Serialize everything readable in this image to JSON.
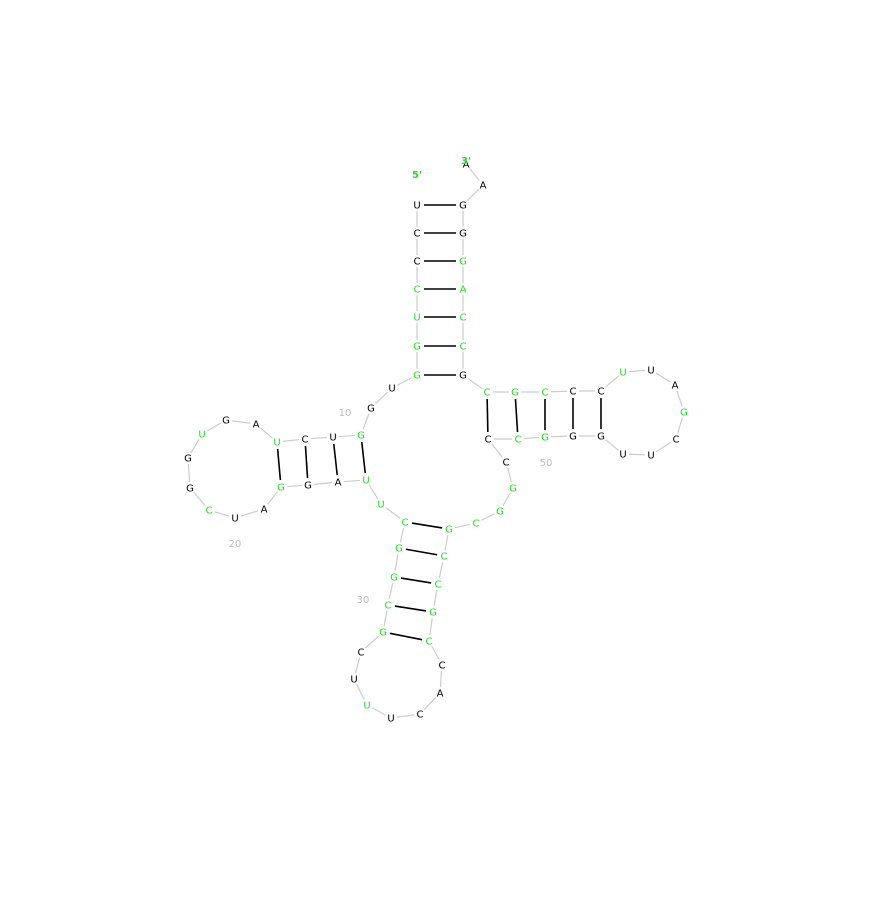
{
  "colors": {
    "black": "#000000",
    "green": "#22dd22",
    "backbone": "#cccccc",
    "pair": "#000000",
    "index": "#bbbbbb"
  },
  "labels": {
    "five_prime": "5'",
    "three_prime": "3'"
  },
  "index_labels": [
    "10",
    "20",
    "30",
    "50"
  ],
  "nucleotides": [
    {
      "base": "U",
      "color": "black"
    },
    {
      "base": "C",
      "color": "black"
    },
    {
      "base": "C",
      "color": "black"
    },
    {
      "base": "C",
      "color": "green"
    },
    {
      "base": "U",
      "color": "green"
    },
    {
      "base": "G",
      "color": "green"
    },
    {
      "base": "G",
      "color": "green"
    },
    {
      "base": "U",
      "color": "black"
    },
    {
      "base": "G",
      "color": "black"
    },
    {
      "base": "G",
      "color": "green"
    },
    {
      "base": "U",
      "color": "black"
    },
    {
      "base": "C",
      "color": "black"
    },
    {
      "base": "U",
      "color": "green"
    },
    {
      "base": "A",
      "color": "black"
    },
    {
      "base": "G",
      "color": "black"
    },
    {
      "base": "U",
      "color": "green"
    },
    {
      "base": "G",
      "color": "black"
    },
    {
      "base": "G",
      "color": "black"
    },
    {
      "base": "C",
      "color": "green"
    },
    {
      "base": "U",
      "color": "black"
    },
    {
      "base": "A",
      "color": "black"
    },
    {
      "base": "G",
      "color": "green"
    },
    {
      "base": "G",
      "color": "black"
    },
    {
      "base": "A",
      "color": "black"
    },
    {
      "base": "U",
      "color": "green"
    },
    {
      "base": "U",
      "color": "green"
    },
    {
      "base": "C",
      "color": "green"
    },
    {
      "base": "G",
      "color": "green"
    },
    {
      "base": "G",
      "color": "green"
    },
    {
      "base": "C",
      "color": "green"
    },
    {
      "base": "G",
      "color": "green"
    },
    {
      "base": "C",
      "color": "black"
    },
    {
      "base": "U",
      "color": "black"
    },
    {
      "base": "U",
      "color": "green"
    },
    {
      "base": "U",
      "color": "black"
    },
    {
      "base": "C",
      "color": "black"
    },
    {
      "base": "A",
      "color": "black"
    },
    {
      "base": "C",
      "color": "black"
    },
    {
      "base": "C",
      "color": "green"
    },
    {
      "base": "G",
      "color": "green"
    },
    {
      "base": "C",
      "color": "green"
    },
    {
      "base": "C",
      "color": "green"
    },
    {
      "base": "G",
      "color": "green"
    },
    {
      "base": "C",
      "color": "green"
    },
    {
      "base": "G",
      "color": "green"
    },
    {
      "base": "G",
      "color": "green"
    },
    {
      "base": "C",
      "color": "black"
    },
    {
      "base": "C",
      "color": "black"
    },
    {
      "base": "C",
      "color": "green"
    },
    {
      "base": "G",
      "color": "green"
    },
    {
      "base": "G",
      "color": "black"
    },
    {
      "base": "G",
      "color": "black"
    },
    {
      "base": "U",
      "color": "black"
    },
    {
      "base": "U",
      "color": "black"
    },
    {
      "base": "C",
      "color": "black"
    },
    {
      "base": "G",
      "color": "green"
    },
    {
      "base": "A",
      "color": "black"
    },
    {
      "base": "U",
      "color": "black"
    },
    {
      "base": "U",
      "color": "green"
    },
    {
      "base": "C",
      "color": "black"
    },
    {
      "base": "C",
      "color": "black"
    },
    {
      "base": "C",
      "color": "green"
    },
    {
      "base": "G",
      "color": "green"
    },
    {
      "base": "C",
      "color": "green"
    },
    {
      "base": "G",
      "color": "black"
    },
    {
      "base": "C",
      "color": "green"
    },
    {
      "base": "C",
      "color": "green"
    },
    {
      "base": "A",
      "color": "green"
    },
    {
      "base": "G",
      "color": "green"
    },
    {
      "base": "G",
      "color": "black"
    },
    {
      "base": "G",
      "color": "black"
    },
    {
      "base": "A",
      "color": "black"
    },
    {
      "base": "A",
      "color": "black"
    }
  ]
}
